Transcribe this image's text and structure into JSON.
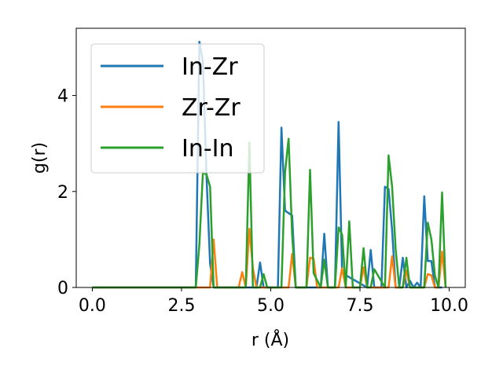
{
  "chart_data": {
    "type": "line",
    "title": "",
    "xlabel": "r (Å)",
    "ylabel": "g(r)",
    "xlim": [
      -0.45,
      10.45
    ],
    "ylim": [
      0,
      5.4
    ],
    "xticks": [
      0.0,
      2.5,
      5.0,
      7.5,
      10.0
    ],
    "xtick_labels": [
      "0.0",
      "2.5",
      "5.0",
      "7.5",
      "10.0"
    ],
    "yticks": [
      0,
      2,
      4
    ],
    "ytick_labels": [
      "0",
      "2",
      "4"
    ],
    "grid": false,
    "legend_position": "upper-left",
    "series": [
      {
        "name": "In-Zr",
        "color": "#1f77b4",
        "x": [
          0,
          2.9,
          3.0,
          3.1,
          3.2,
          3.3,
          3.4,
          4.6,
          4.7,
          4.8,
          5.2,
          5.3,
          5.4,
          5.5,
          5.6,
          5.7,
          6.4,
          6.5,
          6.6,
          6.8,
          6.9,
          7.0,
          7.7,
          7.8,
          7.9,
          8.1,
          8.2,
          8.3,
          8.4,
          8.5,
          8.6,
          8.7,
          8.8,
          8.9,
          9.0,
          9.1,
          9.2,
          9.3,
          9.4,
          9.5,
          9.6,
          9.7,
          9.8
        ],
        "y": [
          0,
          0,
          5.12,
          4.7,
          2.3,
          0.5,
          0,
          0,
          0.52,
          0,
          0,
          3.33,
          1.6,
          1.55,
          1.5,
          0,
          0,
          1.12,
          0,
          0,
          3.45,
          0.3,
          0,
          0.78,
          0,
          0,
          2.1,
          2.05,
          1.2,
          0,
          0,
          0.62,
          0,
          0.14,
          0,
          0.1,
          0,
          1.9,
          0.55,
          0.55,
          0,
          0,
          0
        ]
      },
      {
        "name": "Zr-Zr",
        "color": "#ff7f0e",
        "x": [
          0,
          3.3,
          3.4,
          3.5,
          4.1,
          4.2,
          4.3,
          4.4,
          4.5,
          4.6,
          4.7,
          5.5,
          5.6,
          5.7,
          6.0,
          6.1,
          6.2,
          6.3,
          6.4,
          6.9,
          7.0,
          7.1,
          7.5,
          7.6,
          7.7,
          8.3,
          8.4,
          8.5,
          8.7,
          8.8,
          8.9,
          9.3,
          9.4,
          9.5,
          9.6,
          9.7,
          9.8,
          9.9
        ],
        "y": [
          0,
          0,
          1.0,
          0,
          0,
          0.32,
          0,
          1.22,
          0.4,
          0,
          0,
          0,
          0.7,
          0,
          0,
          0.62,
          0.6,
          0,
          0,
          0,
          0.4,
          0,
          0,
          0.42,
          0,
          0,
          0.65,
          0,
          0,
          0.35,
          0,
          0,
          0.28,
          0.25,
          0,
          0,
          0.75,
          0
        ]
      },
      {
        "name": "In-In",
        "color": "#2ca02c",
        "x": [
          0,
          2.9,
          3.0,
          3.1,
          3.2,
          3.3,
          3.4,
          4.3,
          4.4,
          4.5,
          4.7,
          4.8,
          4.9,
          5.3,
          5.4,
          5.5,
          5.6,
          5.7,
          6.0,
          6.1,
          6.2,
          6.4,
          6.5,
          6.6,
          6.8,
          6.9,
          7.0,
          7.1,
          7.2,
          7.3,
          7.5,
          7.6,
          7.7,
          7.8,
          7.9,
          8.2,
          8.3,
          8.4,
          8.5,
          8.6,
          8.7,
          8.8,
          8.9,
          9.3,
          9.4,
          9.5,
          9.6,
          9.7,
          9.8,
          9.9
        ],
        "y": [
          0,
          0,
          0.9,
          2.4,
          2.35,
          2.1,
          0,
          0,
          3.02,
          0,
          0,
          0.28,
          0,
          0,
          2.4,
          3.1,
          1.1,
          0,
          0,
          2.45,
          0.3,
          0,
          0.58,
          0,
          0,
          1.25,
          1.1,
          0,
          1.38,
          0,
          0,
          0.82,
          0,
          0,
          0.38,
          0,
          2.75,
          2.1,
          0.8,
          0,
          0,
          0.62,
          0,
          0,
          1.35,
          1.0,
          0.25,
          0,
          1.98,
          0
        ]
      }
    ]
  }
}
